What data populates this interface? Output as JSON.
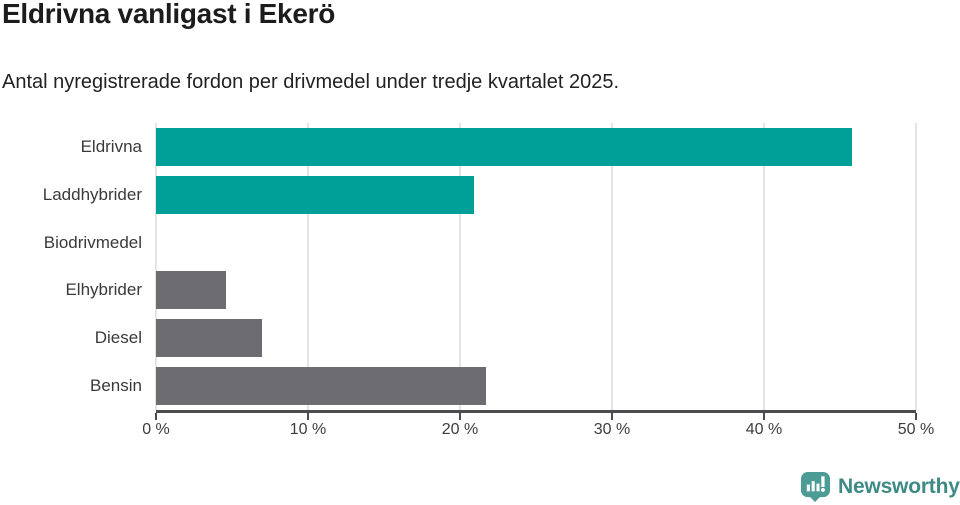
{
  "chart_data": {
    "type": "bar",
    "orientation": "horizontal",
    "title": "Eldrivna vanligast i Ekerö",
    "subtitle": "Antal nyregistrerade fordon per drivmedel under tredje kvartalet 2025.",
    "categories": [
      "Eldrivna",
      "Laddhybrider",
      "Biodrivmedel",
      "Elhybrider",
      "Diesel",
      "Bensin"
    ],
    "values": [
      45.8,
      20.9,
      0,
      4.6,
      7.0,
      21.7
    ],
    "unit": "%",
    "xlim": [
      0,
      50
    ],
    "x_ticks": [
      "0 %",
      "10 %",
      "20 %",
      "30 %",
      "40 %",
      "50 %"
    ],
    "bar_colors": [
      "#00a099",
      "#00a099",
      "#6c6c71",
      "#6c6c71",
      "#6c6c71",
      "#6c6c71"
    ],
    "highlight_color": "#00a099",
    "base_color": "#6c6c71",
    "grid": "vertical-gridlines",
    "legend": "none",
    "xlabel": "",
    "ylabel": ""
  },
  "footer": {
    "brand": "Newsworthy",
    "brand_color": "#3e8a85",
    "icon_color": "#4d9b95",
    "icon": "speech-bubble-bar-chart-icon"
  }
}
